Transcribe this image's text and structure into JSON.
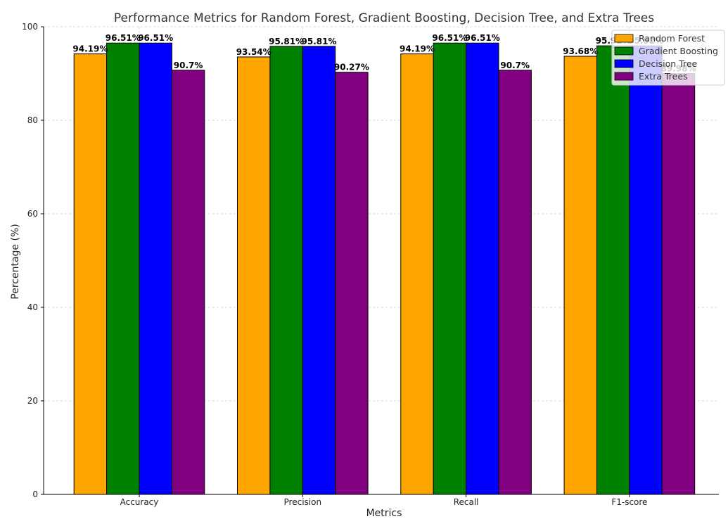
{
  "chart_data": {
    "type": "bar",
    "title": "Performance Metrics for Random Forest, Gradient Boosting, Decision Tree, and Extra Trees",
    "xlabel": "Metrics",
    "ylabel": "Percentage (%)",
    "categories": [
      "Accuracy",
      "Precision",
      "Recall",
      "F1-score"
    ],
    "ylim": [
      0,
      100
    ],
    "yticks": [
      0,
      20,
      40,
      60,
      80,
      100
    ],
    "grid": true,
    "legend_position": "top-right",
    "series": [
      {
        "name": "Random Forest",
        "color": "#FFA500",
        "values": [
          94.19,
          93.54,
          94.19,
          93.68
        ],
        "labels": [
          "94.19%",
          "93.54%",
          "94.19%",
          "93.68%"
        ]
      },
      {
        "name": "Gradient Boosting",
        "color": "#008000",
        "values": [
          96.51,
          95.81,
          96.51,
          95.92
        ],
        "labels": [
          "96.51%",
          "95.81%",
          "96.51%",
          "95.92%"
        ]
      },
      {
        "name": "Decision Tree",
        "color": "#0000FF",
        "values": [
          96.51,
          95.81,
          96.51,
          95.92
        ],
        "labels": [
          "96.51%",
          "95.81%",
          "96.51%",
          "95.92%"
        ]
      },
      {
        "name": "Extra Trees",
        "color": "#800080",
        "values": [
          90.7,
          90.27,
          90.7,
          89.98
        ],
        "labels": [
          "90.7%",
          "90.27%",
          "90.7%",
          "89.98%"
        ]
      }
    ]
  }
}
